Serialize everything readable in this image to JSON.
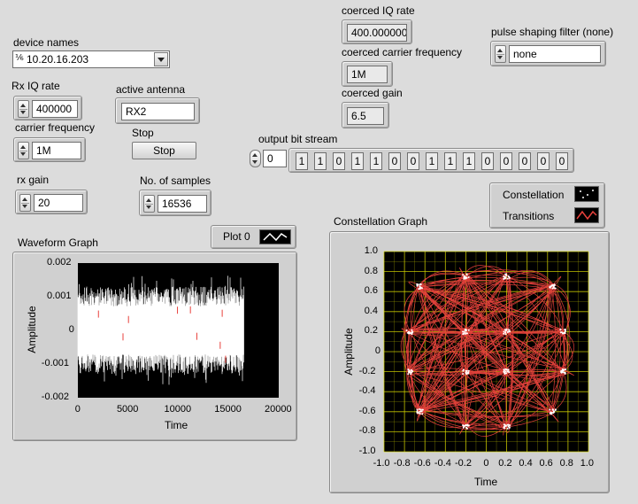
{
  "device_names": {
    "label": "device names",
    "value": "10.20.16.203"
  },
  "rx_iq_rate": {
    "label": "Rx IQ rate",
    "value": "400000"
  },
  "active_antenna": {
    "label": "active antenna",
    "value": "RX2"
  },
  "carrier_frequency": {
    "label": "carrier frequency",
    "value": "1M"
  },
  "stop": {
    "label": "Stop",
    "button_label": "Stop"
  },
  "rx_gain": {
    "label": "rx gain",
    "value": "20"
  },
  "num_samples": {
    "label": "No. of samples",
    "value": "16536"
  },
  "coerced_iq_rate": {
    "label": "coerced IQ rate",
    "value": "400.0000000"
  },
  "coerced_carrier_frequency": {
    "label": "coerced carrier frequency",
    "value": "1M"
  },
  "coerced_gain": {
    "label": "coerced gain",
    "value": "6.5"
  },
  "pulse_shaping_filter": {
    "label": "pulse shaping filter (none)",
    "value": "none"
  },
  "output_bit_stream": {
    "label": "output bit stream",
    "index": "0",
    "bits": [
      "1",
      "1",
      "0",
      "1",
      "1",
      "0",
      "0",
      "1",
      "1",
      "1",
      "0",
      "0",
      "0",
      "0",
      "0"
    ]
  },
  "waveform_graph": {
    "label": "Waveform Graph",
    "legend_label": "Plot 0",
    "xlabel": "Time",
    "ylabel": "Amplitude",
    "x_ticks": [
      "0",
      "5000",
      "10000",
      "15000",
      "20000"
    ],
    "y_ticks": [
      "0.002",
      "0.001",
      "0",
      "-0.001",
      "-0.002"
    ]
  },
  "constellation_graph": {
    "label": "Constellation Graph",
    "legend": [
      {
        "label": "Constellation"
      },
      {
        "label": "Transitions"
      }
    ],
    "xlabel": "Time",
    "ylabel": "Amplitude",
    "x_ticks": [
      "-1.0",
      "-0.8",
      "-0.6",
      "-0.4",
      "-0.2",
      "0",
      "0.2",
      "0.4",
      "0.6",
      "0.8",
      "1.0"
    ],
    "y_ticks": [
      "1.0",
      "0.8",
      "0.6",
      "0.4",
      "0.2",
      "0",
      "-0.2",
      "-0.4",
      "-0.6",
      "-0.8",
      "-1.0"
    ]
  },
  "colors": {
    "plot_bg": "#000000",
    "trace": "#ffffff",
    "transitions": "#e8413c",
    "grid": "#d4d400"
  },
  "chart_data": [
    {
      "type": "line",
      "title": "Waveform Graph",
      "xlabel": "Time",
      "ylabel": "Amplitude",
      "xlim": [
        0,
        20000
      ],
      "ylim": [
        -0.002,
        0.002
      ],
      "series": [
        {
          "name": "Plot 0",
          "x_range": [
            0,
            16536
          ],
          "envelope": [
            -0.0013,
            0.0013
          ]
        }
      ]
    },
    {
      "type": "scatter",
      "title": "Constellation Graph",
      "xlabel": "Time",
      "ylabel": "Amplitude",
      "xlim": [
        -1.0,
        1.0
      ],
      "ylim": [
        -1.0,
        1.0
      ],
      "grid": true,
      "series": [
        {
          "name": "Constellation",
          "points": [
            [
              -0.2,
              0.75
            ],
            [
              0.2,
              0.75
            ],
            [
              -0.75,
              0.2
            ],
            [
              -0.2,
              0.2
            ],
            [
              0.2,
              0.2
            ],
            [
              0.75,
              0.2
            ],
            [
              -0.75,
              -0.2
            ],
            [
              -0.2,
              -0.2
            ],
            [
              0.2,
              -0.2
            ],
            [
              0.75,
              -0.2
            ],
            [
              -0.2,
              -0.75
            ],
            [
              0.2,
              -0.75
            ],
            [
              -0.65,
              0.65
            ],
            [
              0.65,
              0.65
            ],
            [
              -0.65,
              -0.6
            ],
            [
              0.65,
              -0.6
            ]
          ]
        },
        {
          "name": "Transitions"
        }
      ]
    }
  ]
}
